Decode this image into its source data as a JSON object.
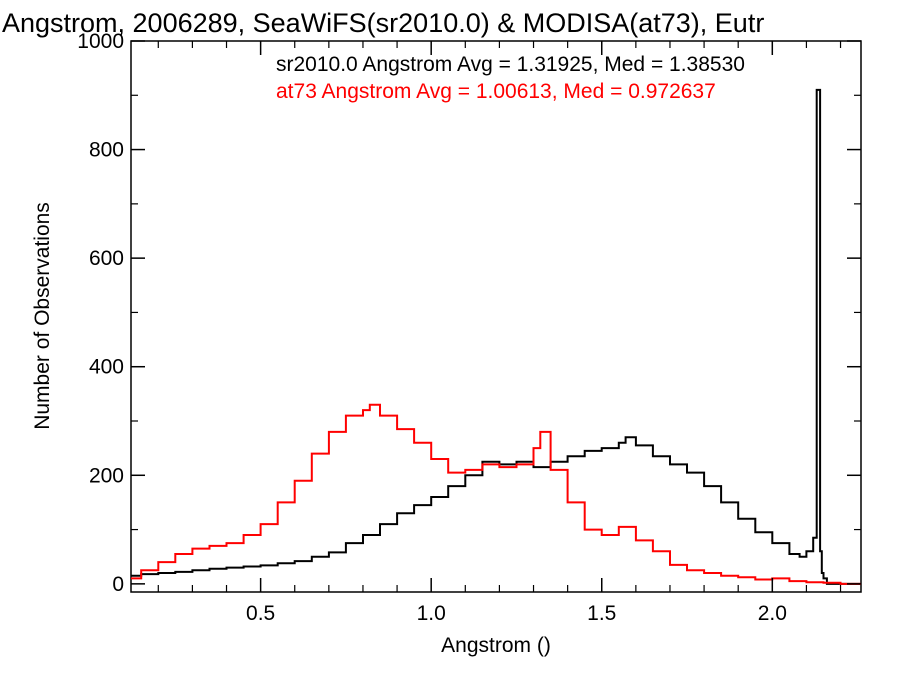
{
  "chart_data": {
    "type": "line",
    "title": "Angstrom, 2006289, SeaWiFS(sr2010.0) & MODISA(at73), Eutr",
    "xlabel": "Angstrom ()",
    "ylabel": "Number of Observations",
    "xlim": [
      0.12,
      2.26
    ],
    "ylim": [
      -15,
      1000
    ],
    "xticks": [
      0.5,
      1.0,
      1.5,
      2.0
    ],
    "xtick_labels": [
      "0.5",
      "1.0",
      "1.5",
      "2.0"
    ],
    "yticks": [
      0,
      200,
      400,
      600,
      800,
      1000
    ],
    "ytick_labels": [
      "0",
      "200",
      "400",
      "600",
      "800",
      "1000"
    ],
    "grid": false,
    "legend_position": "top-right",
    "step_histogram": true,
    "annotations": [
      {
        "text": "sr2010.0 Angstrom Avg = 1.31925, Med = 1.38530",
        "color": "#000000"
      },
      {
        "text": "at73 Angstrom Avg = 1.00613, Med = 0.972637",
        "color": "#ff0000"
      }
    ],
    "series": [
      {
        "color": "#000000",
        "x": [
          0.12,
          0.15,
          0.2,
          0.25,
          0.3,
          0.35,
          0.4,
          0.45,
          0.5,
          0.55,
          0.6,
          0.65,
          0.7,
          0.75,
          0.8,
          0.85,
          0.9,
          0.95,
          1.0,
          1.05,
          1.1,
          1.15,
          1.2,
          1.25,
          1.3,
          1.35,
          1.4,
          1.45,
          1.5,
          1.55,
          1.57,
          1.6,
          1.65,
          1.7,
          1.75,
          1.8,
          1.85,
          1.9,
          1.95,
          2.0,
          2.05,
          2.08,
          2.1,
          2.12,
          2.13,
          2.135,
          2.14,
          2.145,
          2.15,
          2.16,
          2.2,
          2.26
        ],
        "y": [
          15,
          18,
          20,
          22,
          25,
          28,
          30,
          32,
          34,
          38,
          42,
          50,
          58,
          75,
          90,
          110,
          130,
          145,
          160,
          180,
          200,
          225,
          220,
          225,
          215,
          225,
          235,
          245,
          250,
          260,
          270,
          255,
          235,
          220,
          205,
          180,
          150,
          120,
          95,
          75,
          55,
          50,
          60,
          85,
          910,
          910,
          60,
          20,
          10,
          0,
          0,
          0
        ]
      },
      {
        "color": "#ff0000",
        "x": [
          0.12,
          0.15,
          0.2,
          0.25,
          0.3,
          0.35,
          0.4,
          0.45,
          0.5,
          0.55,
          0.6,
          0.65,
          0.7,
          0.75,
          0.8,
          0.82,
          0.85,
          0.9,
          0.95,
          1.0,
          1.05,
          1.1,
          1.15,
          1.2,
          1.25,
          1.3,
          1.32,
          1.35,
          1.4,
          1.45,
          1.5,
          1.55,
          1.6,
          1.65,
          1.7,
          1.75,
          1.8,
          1.85,
          1.9,
          1.95,
          2.0,
          2.05,
          2.1,
          2.15,
          2.2,
          2.26
        ],
        "y": [
          10,
          25,
          40,
          55,
          65,
          70,
          75,
          90,
          110,
          150,
          190,
          240,
          280,
          310,
          320,
          330,
          310,
          285,
          260,
          230,
          205,
          210,
          220,
          215,
          220,
          250,
          280,
          210,
          150,
          100,
          90,
          105,
          80,
          60,
          35,
          25,
          20,
          15,
          12,
          8,
          10,
          5,
          3,
          2,
          0,
          0
        ]
      }
    ]
  }
}
